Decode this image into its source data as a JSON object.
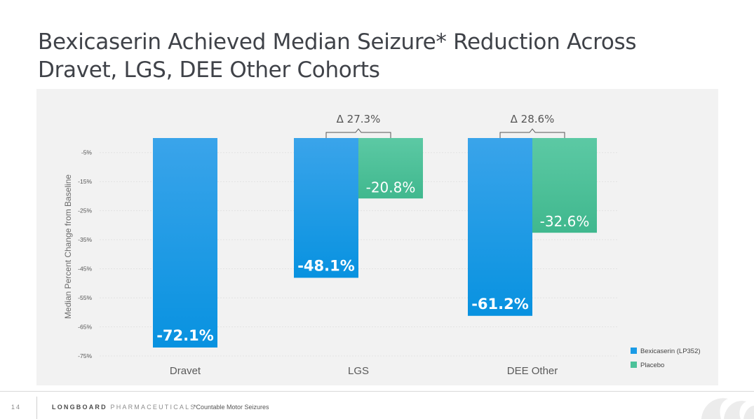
{
  "slide": {
    "title_line1": "Bexicaserin Achieved Median Seizure* Reduction Across",
    "title_line2": "Dravet, LGS, DEE Other Cohorts",
    "page_number": "14",
    "company_bold": "LONGBOARD",
    "company_light": "PHARMACEUTICALS",
    "footnote": "*Countable Motor Seizures"
  },
  "colors": {
    "bexicaserin": "#1a9be6",
    "placebo": "#4cc29a",
    "panel": "#f2f2f2"
  },
  "chart_data": {
    "type": "bar",
    "categories": [
      "Dravet",
      "LGS",
      "DEE Other"
    ],
    "series": [
      {
        "name": "Bexicaserin (LP352)",
        "values": [
          -72.1,
          -48.1,
          -61.2
        ],
        "labels": [
          "-72.1%",
          "-48.1%",
          "-61.2%"
        ]
      },
      {
        "name": "Placebo",
        "values": [
          null,
          -20.8,
          -32.6
        ],
        "labels": [
          "",
          "-20.8%",
          "-32.6%"
        ]
      }
    ],
    "ylabel": "Median Percent Change from Baseline",
    "ylim": [
      -75,
      0
    ],
    "yticks": [
      -5,
      -15,
      -25,
      -35,
      -45,
      -55,
      -65,
      -75
    ],
    "ytick_labels": [
      "-5%",
      "-15%",
      "-25%",
      "-35%",
      "-45%",
      "-55%",
      "-65%",
      "-75%"
    ],
    "deltas": [
      {
        "category": "LGS",
        "label": "Δ 27.3%"
      },
      {
        "category": "DEE Other",
        "label": "Δ 28.6%"
      }
    ],
    "legend_position": "bottom-right",
    "grid": true
  }
}
